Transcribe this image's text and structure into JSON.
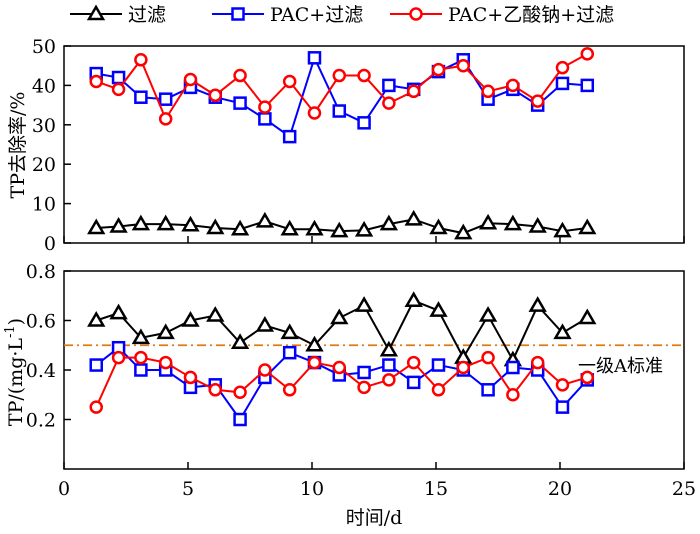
{
  "legend": [
    {
      "name": "过滤",
      "color": "#000000",
      "marker": "triangle"
    },
    {
      "name": "PAC+过滤",
      "color": "#0000ff",
      "marker": "square"
    },
    {
      "name": "PAC+乙酸钠+过滤",
      "color": "#ff0000",
      "marker": "circle"
    }
  ],
  "chart_data": [
    {
      "type": "line",
      "panel": "top",
      "ylabel": "TP去除率/%",
      "ylim": [
        0,
        50
      ],
      "yticks": [
        0,
        10,
        20,
        30,
        40,
        50
      ],
      "xlim": [
        0,
        25
      ],
      "x": [
        1.3,
        2.2,
        3.1,
        4.1,
        5.1,
        6.1,
        7.1,
        8.1,
        9.1,
        10.1,
        11.1,
        12.1,
        13.1,
        14.1,
        15.1,
        16.1,
        17.1,
        18.1,
        19.1,
        20.1,
        21.1
      ],
      "series": [
        {
          "name": "过滤",
          "color": "#000000",
          "marker": "triangle",
          "values": [
            3.8,
            4.2,
            4.8,
            4.8,
            4.5,
            3.8,
            3.5,
            5.5,
            3.5,
            3.5,
            3.0,
            3.2,
            4.8,
            6.0,
            3.8,
            2.5,
            5.0,
            4.8,
            4.2,
            3.0,
            3.8
          ]
        },
        {
          "name": "PAC+过滤",
          "color": "#0000ff",
          "marker": "square",
          "values": [
            43.0,
            42.0,
            37.0,
            36.5,
            39.5,
            37.0,
            35.5,
            31.5,
            27.0,
            47.0,
            33.5,
            30.5,
            40.0,
            39.0,
            43.5,
            46.5,
            36.5,
            39.0,
            35.0,
            40.5,
            40.0
          ]
        },
        {
          "name": "PAC+乙酸钠+过滤",
          "color": "#ff0000",
          "marker": "circle",
          "values": [
            41.0,
            39.0,
            46.5,
            31.5,
            41.5,
            37.5,
            42.5,
            34.5,
            41.0,
            33.0,
            42.5,
            42.5,
            35.5,
            38.5,
            44.0,
            45.0,
            38.5,
            40.0,
            36.0,
            44.5,
            48.0
          ]
        }
      ]
    },
    {
      "type": "line",
      "panel": "bottom",
      "ylabel": "TP/(mg·L",
      "ylabel_sup": "-1",
      "ylabel_tail": ")",
      "xlabel": "时间/d",
      "ylim": [
        0.0,
        0.8
      ],
      "yticks": [
        0.2,
        0.4,
        0.6,
        0.8
      ],
      "xlim": [
        0,
        25
      ],
      "xticks": [
        0,
        5,
        10,
        15,
        20,
        25
      ],
      "x": [
        1.3,
        2.2,
        3.1,
        4.1,
        5.1,
        6.1,
        7.1,
        8.1,
        9.1,
        10.1,
        11.1,
        12.1,
        13.1,
        14.1,
        15.1,
        16.1,
        17.1,
        18.1,
        19.1,
        20.1,
        21.1
      ],
      "reference_line": {
        "value": 0.5,
        "label": "一级A标准",
        "color": "#e07a10"
      },
      "series": [
        {
          "name": "过滤",
          "color": "#000000",
          "marker": "triangle",
          "values": [
            0.6,
            0.63,
            0.53,
            0.55,
            0.6,
            0.62,
            0.51,
            0.58,
            0.55,
            0.5,
            0.61,
            0.66,
            0.48,
            0.68,
            0.64,
            0.45,
            0.62,
            0.44,
            0.66,
            0.55,
            0.61
          ]
        },
        {
          "name": "PAC+过滤",
          "color": "#0000ff",
          "marker": "square",
          "values": [
            0.42,
            0.49,
            0.4,
            0.4,
            0.33,
            0.34,
            0.2,
            0.37,
            0.47,
            0.43,
            0.38,
            0.39,
            0.42,
            0.35,
            0.42,
            0.4,
            0.32,
            0.41,
            0.4,
            0.25,
            0.36
          ]
        },
        {
          "name": "PAC+乙酸钠+过滤",
          "color": "#ff0000",
          "marker": "circle",
          "values": [
            0.25,
            0.45,
            0.45,
            0.43,
            0.37,
            0.32,
            0.31,
            0.4,
            0.32,
            0.43,
            0.41,
            0.33,
            0.36,
            0.43,
            0.32,
            0.41,
            0.45,
            0.3,
            0.43,
            0.34,
            0.37
          ]
        }
      ]
    }
  ]
}
